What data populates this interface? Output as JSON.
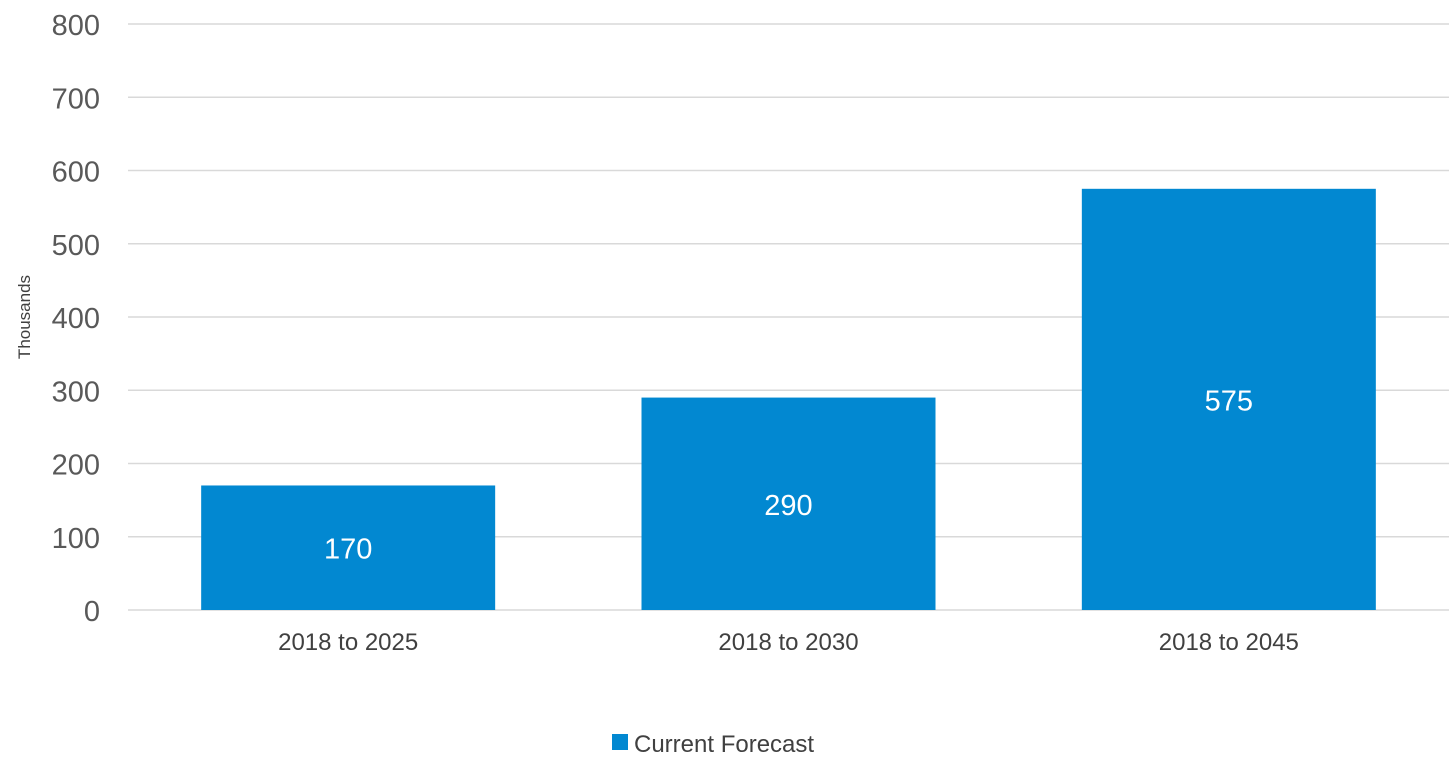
{
  "chart_data": {
    "type": "bar",
    "categories": [
      "2018 to 2025",
      "2018 to 2030",
      "2018 to 2045"
    ],
    "series": [
      {
        "name": "Current Forecast",
        "values": [
          170,
          290,
          575
        ],
        "color": "#0288D1"
      }
    ],
    "title": "",
    "xlabel": "",
    "ylabel": "Thousands",
    "ylim": [
      0,
      800
    ],
    "yticks": [
      0,
      100,
      200,
      300,
      400,
      500,
      600,
      700,
      800
    ],
    "grid": true,
    "legend_position": "bottom",
    "data_labels": [
      "170",
      "290",
      "575"
    ],
    "gridline_color": "#d9d9d9"
  }
}
